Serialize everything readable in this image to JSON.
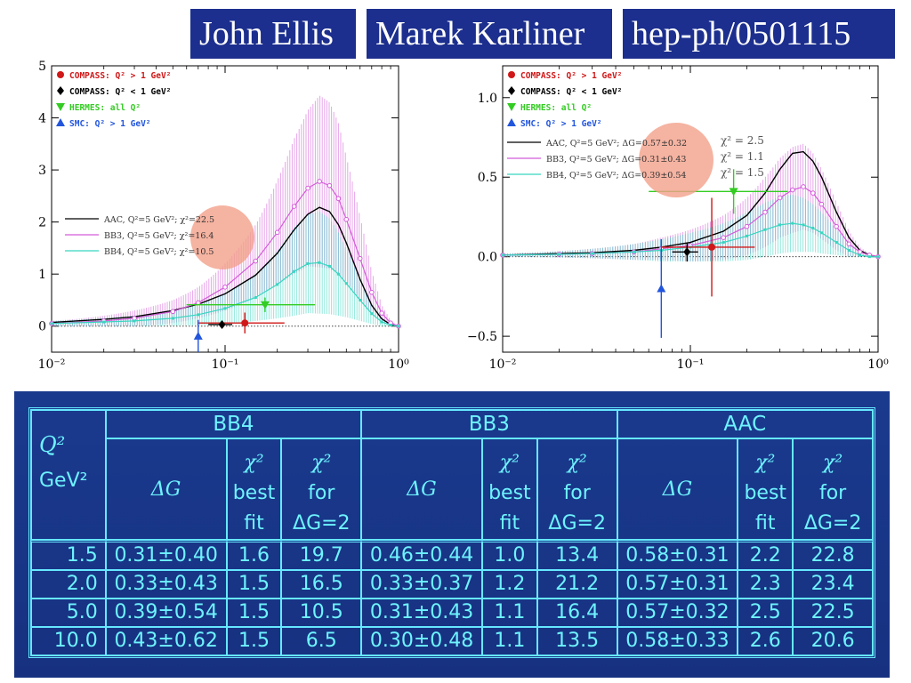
{
  "header": {
    "author1": "John Ellis",
    "author2": "Marek Karliner",
    "paper_id": "hep-ph/0501115"
  },
  "colors": {
    "header_bg": "#1c2f8e",
    "table_bg": "#183486",
    "table_text": "#6ef3ff",
    "AAC": "#000000",
    "BB3": "#d45cd9",
    "BB4": "#38d6c0",
    "COMPASS_high": "#d01818",
    "COMPASS_low": "#000000",
    "HERMES": "#33cc22",
    "SMC": "#2255dd",
    "highlight": "#f2a08a"
  },
  "chart_data": [
    {
      "type": "line",
      "xscale": "log",
      "xlim": [
        0.01,
        1
      ],
      "ylim": [
        -0.5,
        5
      ],
      "yticks": [
        0,
        1,
        2,
        3,
        4,
        5
      ],
      "xtick_labels": [
        "10⁻²",
        "10⁻¹",
        "10⁰"
      ],
      "grid": false,
      "legend_points": [
        {
          "label": "COMPASS: Q² > 1 GeV²",
          "color": "#d01818",
          "marker": "circle"
        },
        {
          "label": "COMPASS: Q² < 1 GeV²",
          "color": "#000000",
          "marker": "diamond"
        },
        {
          "label": "HERMES:  all Q²",
          "color": "#33cc22",
          "marker": "triangle-down"
        },
        {
          "label": "SMC:     Q² > 1 GeV²",
          "color": "#2255dd",
          "marker": "triangle-up"
        }
      ],
      "legend_curves": [
        {
          "label": "AAC, Q²=5 GeV²; χ²=22.5",
          "color": "#000000"
        },
        {
          "label": "BB3, Q²=5 GeV²; χ²=16.4",
          "color": "#d45cd9"
        },
        {
          "label": "BB4, Q²=5 GeV²; χ²=10.5",
          "color": "#38d6c0"
        }
      ],
      "series": [
        {
          "name": "AAC",
          "x": [
            0.01,
            0.02,
            0.03,
            0.05,
            0.07,
            0.1,
            0.15,
            0.2,
            0.25,
            0.3,
            0.35,
            0.4,
            0.45,
            0.5,
            0.6,
            0.7,
            0.8,
            0.9,
            1.0
          ],
          "y": [
            0.07,
            0.13,
            0.18,
            0.3,
            0.42,
            0.62,
            0.98,
            1.4,
            1.85,
            2.15,
            2.28,
            2.2,
            1.95,
            1.6,
            0.9,
            0.4,
            0.14,
            0.03,
            0.0
          ]
        },
        {
          "name": "BB3",
          "x": [
            0.01,
            0.02,
            0.03,
            0.05,
            0.07,
            0.1,
            0.15,
            0.2,
            0.25,
            0.3,
            0.35,
            0.4,
            0.45,
            0.5,
            0.6,
            0.7,
            0.8,
            0.9,
            1.0
          ],
          "y": [
            0.05,
            0.1,
            0.15,
            0.28,
            0.45,
            0.75,
            1.25,
            1.8,
            2.3,
            2.65,
            2.78,
            2.7,
            2.45,
            2.05,
            1.3,
            0.65,
            0.25,
            0.06,
            0.0
          ],
          "error": [
            0.05,
            0.1,
            0.15,
            0.22,
            0.3,
            0.45,
            0.7,
            1.0,
            1.3,
            1.5,
            1.65,
            1.6,
            1.45,
            1.2,
            0.8,
            0.4,
            0.15,
            0.05,
            0.0
          ]
        },
        {
          "name": "BB4",
          "x": [
            0.01,
            0.02,
            0.03,
            0.05,
            0.07,
            0.1,
            0.15,
            0.2,
            0.25,
            0.3,
            0.35,
            0.4,
            0.45,
            0.5,
            0.6,
            0.7,
            0.8,
            0.9,
            1.0
          ],
          "y": [
            0.05,
            0.08,
            0.1,
            0.15,
            0.22,
            0.34,
            0.55,
            0.8,
            1.05,
            1.2,
            1.22,
            1.15,
            1.0,
            0.82,
            0.5,
            0.24,
            0.08,
            0.02,
            0.0
          ],
          "error": [
            0.05,
            0.08,
            0.1,
            0.14,
            0.2,
            0.3,
            0.45,
            0.65,
            0.85,
            0.95,
            0.98,
            0.92,
            0.8,
            0.65,
            0.4,
            0.2,
            0.08,
            0.02,
            0.0
          ]
        }
      ],
      "points": [
        {
          "name": "COMPASS: Q² > 1 GeV²",
          "x": 0.13,
          "y": 0.06,
          "yerr": 0.2,
          "xerr": [
            0.07,
            0.22
          ],
          "color": "#d01818",
          "marker": "circle"
        },
        {
          "name": "COMPASS: Q² < 1 GeV²",
          "x": 0.096,
          "y": 0.03,
          "yerr": 0.06,
          "xerr": [
            0.08,
            0.11
          ],
          "color": "#000000",
          "marker": "diamond"
        },
        {
          "name": "HERMES:  all Q²",
          "x": 0.17,
          "y": 0.41,
          "yerr": 0.14,
          "xerr": [
            0.06,
            0.33
          ],
          "color": "#33cc22",
          "marker": "triangle-down"
        },
        {
          "name": "SMC:     Q² > 1 GeV²",
          "x": 0.07,
          "y": -0.19,
          "yerr": 0.31,
          "xerr": null,
          "color": "#2255dd",
          "marker": "triangle-up"
        }
      ]
    },
    {
      "type": "line",
      "xscale": "log",
      "xlim": [
        0.01,
        1
      ],
      "ylim": [
        -0.6,
        1.2
      ],
      "yticks": [
        -0.5,
        0.0,
        0.5,
        1.0
      ],
      "ytick_labels": [
        "−0.5",
        "0.0",
        "0.5",
        "1.0"
      ],
      "xtick_labels": [
        "10⁻²",
        "10⁻¹",
        "10⁰"
      ],
      "grid": false,
      "legend_points": [
        {
          "label": "COMPASS: Q² > 1 GeV²",
          "color": "#d01818",
          "marker": "circle"
        },
        {
          "label": "COMPASS: Q² < 1 GeV²",
          "color": "#000000",
          "marker": "diamond"
        },
        {
          "label": "HERMES:  all Q²",
          "color": "#33cc22",
          "marker": "triangle-down"
        },
        {
          "label": "SMC:        Q² > 1 GeV²",
          "color": "#2255dd",
          "marker": "triangle-up"
        }
      ],
      "legend_curves": [
        {
          "label": "AAC, Q²=5 GeV²; ΔG=0.57±0.32",
          "chi": "χ² = 2.5",
          "color": "#000000"
        },
        {
          "label": "BB3, Q²=5 GeV²; ΔG=0.31±0.43",
          "chi": "χ² = 1.1",
          "color": "#d45cd9"
        },
        {
          "label": "BB4, Q²=5 GeV²; ΔG=0.39±0.54",
          "chi": "χ² = 1.5",
          "color": "#38d6c0"
        }
      ],
      "series": [
        {
          "name": "AAC",
          "x": [
            0.01,
            0.02,
            0.03,
            0.05,
            0.07,
            0.1,
            0.15,
            0.2,
            0.25,
            0.3,
            0.35,
            0.4,
            0.45,
            0.5,
            0.6,
            0.7,
            0.8,
            0.9,
            1.0
          ],
          "y": [
            0.01,
            0.02,
            0.025,
            0.04,
            0.06,
            0.09,
            0.16,
            0.26,
            0.4,
            0.55,
            0.65,
            0.66,
            0.6,
            0.5,
            0.28,
            0.12,
            0.04,
            0.01,
            0.0
          ]
        },
        {
          "name": "BB3",
          "x": [
            0.01,
            0.02,
            0.03,
            0.05,
            0.07,
            0.1,
            0.15,
            0.2,
            0.25,
            0.3,
            0.35,
            0.4,
            0.45,
            0.5,
            0.6,
            0.7,
            0.8,
            0.9,
            1.0
          ],
          "y": [
            0.01,
            0.015,
            0.02,
            0.03,
            0.05,
            0.07,
            0.12,
            0.19,
            0.28,
            0.37,
            0.42,
            0.44,
            0.4,
            0.33,
            0.19,
            0.08,
            0.03,
            0.01,
            0.0
          ],
          "error": [
            0.01,
            0.02,
            0.03,
            0.05,
            0.07,
            0.1,
            0.14,
            0.18,
            0.22,
            0.25,
            0.27,
            0.27,
            0.25,
            0.22,
            0.15,
            0.08,
            0.03,
            0.01,
            0.0
          ]
        },
        {
          "name": "BB4",
          "x": [
            0.01,
            0.02,
            0.03,
            0.05,
            0.07,
            0.1,
            0.15,
            0.2,
            0.25,
            0.3,
            0.35,
            0.4,
            0.45,
            0.5,
            0.6,
            0.7,
            0.8,
            0.9,
            1.0
          ],
          "y": [
            0.01,
            0.015,
            0.02,
            0.03,
            0.04,
            0.06,
            0.09,
            0.13,
            0.17,
            0.2,
            0.21,
            0.2,
            0.18,
            0.15,
            0.09,
            0.04,
            0.01,
            0.0,
            0.0
          ],
          "error": [
            0.01,
            0.02,
            0.03,
            0.05,
            0.07,
            0.09,
            0.12,
            0.15,
            0.17,
            0.18,
            0.18,
            0.17,
            0.15,
            0.13,
            0.08,
            0.04,
            0.01,
            0.0,
            0.0
          ]
        }
      ],
      "points": [
        {
          "name": "COMPASS: Q² > 1 GeV²",
          "x": 0.13,
          "y": 0.06,
          "yerr": 0.31,
          "xerr": [
            0.07,
            0.22
          ],
          "color": "#d01818",
          "marker": "circle"
        },
        {
          "name": "COMPASS: Q² < 1 GeV²",
          "x": 0.096,
          "y": 0.03,
          "yerr": 0.06,
          "xerr": [
            0.08,
            0.11
          ],
          "color": "#000000",
          "marker": "diamond"
        },
        {
          "name": "HERMES:  all Q²",
          "x": 0.17,
          "y": 0.41,
          "yerr": 0.14,
          "xerr": [
            0.06,
            0.33
          ],
          "color": "#33cc22",
          "marker": "triangle-down"
        },
        {
          "name": "SMC:        Q² > 1 GeV²",
          "x": 0.07,
          "y": -0.2,
          "yerr": 0.31,
          "xerr": null,
          "color": "#2255dd",
          "marker": "triangle-up"
        }
      ]
    },
    {
      "type": "table",
      "groups": [
        "BB4",
        "BB3",
        "AAC"
      ],
      "q_header": [
        "Q²",
        "GeV²"
      ],
      "sub_headers": {
        "dg": "ΔG",
        "chi_best": [
          "χ²",
          "best",
          "fit"
        ],
        "chi_for": [
          "χ²",
          "for",
          "ΔG=2"
        ]
      },
      "rows": [
        {
          "q": "1.5",
          "BB4": [
            "0.31±0.40",
            "1.6",
            "19.7"
          ],
          "BB3": [
            "0.46±0.44",
            "1.0",
            "13.4"
          ],
          "AAC": [
            "0.58±0.31",
            "2.2",
            "22.8"
          ]
        },
        {
          "q": "2.0",
          "BB4": [
            "0.33±0.43",
            "1.5",
            "16.5"
          ],
          "BB3": [
            "0.33±0.37",
            "1.2",
            "21.2"
          ],
          "AAC": [
            "0.57±0.31",
            "2.3",
            "23.4"
          ]
        },
        {
          "q": "5.0",
          "BB4": [
            "0.39±0.54",
            "1.5",
            "10.5"
          ],
          "BB3": [
            "0.31±0.43",
            "1.1",
            "16.4"
          ],
          "AAC": [
            "0.57±0.32",
            "2.5",
            "22.5"
          ]
        },
        {
          "q": "10.0",
          "BB4": [
            "0.43±0.62",
            "1.5",
            "6.5"
          ],
          "BB3": [
            "0.30±0.48",
            "1.1",
            "13.5"
          ],
          "AAC": [
            "0.58±0.33",
            "2.6",
            "20.6"
          ]
        }
      ]
    }
  ]
}
